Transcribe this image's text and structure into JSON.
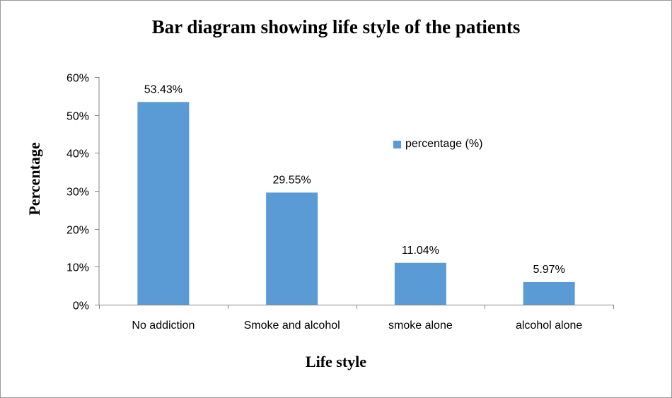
{
  "chart_data": {
    "type": "bar",
    "title": "Bar diagram showing life style of the patients",
    "xlabel": "Life style",
    "ylabel": "Percentage",
    "categories": [
      "No addiction",
      "Smoke and alcohol",
      "smoke alone",
      "alcohol alone"
    ],
    "series": [
      {
        "name": "percentage (%)",
        "values": [
          53.43,
          29.55,
          11.04,
          5.97
        ],
        "labels": [
          "53.43%",
          "29.55%",
          "11.04%",
          "5.97%"
        ]
      }
    ],
    "ylim": [
      0,
      60
    ],
    "yticks": [
      "0%",
      "10%",
      "20%",
      "30%",
      "40%",
      "50%",
      "60%"
    ],
    "grid": false,
    "legend_position": "right",
    "bar_color": "#5b9bd5"
  }
}
